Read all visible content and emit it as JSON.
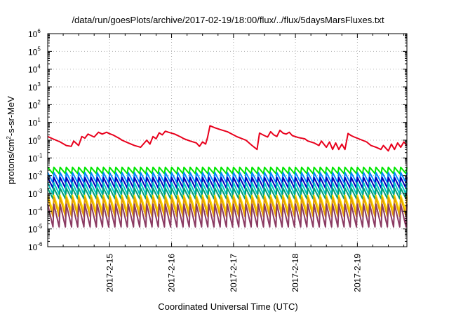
{
  "chart_data": {
    "type": "line",
    "title": "/data/run/goesPlots/archive/2017-02-19/18:00/flux/../flux/5daysMarsFluxes.txt",
    "xlabel": "Coordinated Universal Time (UTC)",
    "ylabel": "protons/cm²-s-sr-MeV",
    "ylabel_parts": {
      "pre": "protons/cm",
      "sup": "2",
      "post": "-s-sr-MeV"
    },
    "yscale": "log",
    "ylim_exponent": [
      -6,
      6
    ],
    "y_tick_labels": [
      {
        "base": "10",
        "exp": "-6"
      },
      {
        "base": "10",
        "exp": "-5"
      },
      {
        "base": "10",
        "exp": "-4"
      },
      {
        "base": "10",
        "exp": "-3"
      },
      {
        "base": "10",
        "exp": "-2"
      },
      {
        "base": "10",
        "exp": "-1"
      },
      {
        "base": "10",
        "exp": "0"
      },
      {
        "base": "10",
        "exp": "1"
      },
      {
        "base": "10",
        "exp": "2"
      },
      {
        "base": "10",
        "exp": "3"
      },
      {
        "base": "10",
        "exp": "4"
      },
      {
        "base": "10",
        "exp": "5"
      },
      {
        "base": "10",
        "exp": "6"
      }
    ],
    "x_tick_labels": [
      "2017-2-15",
      "2017-2-16",
      "2017-2-17",
      "2017-2-18",
      "2017-2-19"
    ],
    "x_tick_days": [
      15,
      16,
      17,
      18,
      19
    ],
    "xlim_days": [
      14.0,
      19.8
    ],
    "grid": true,
    "legend": "none",
    "series": [
      {
        "color": "#e8001c",
        "x": [
          14.0,
          14.08,
          14.2,
          14.3,
          14.38,
          14.42,
          14.5,
          14.55,
          14.6,
          14.65,
          14.75,
          14.82,
          14.88,
          14.95,
          15.0,
          15.05,
          15.15,
          15.2,
          15.3,
          15.4,
          15.5,
          15.6,
          15.65,
          15.7,
          15.75,
          15.8,
          15.85,
          15.9,
          15.95,
          16.05,
          16.15,
          16.2,
          16.3,
          16.4,
          16.45,
          16.5,
          16.55,
          16.58,
          16.62,
          16.7,
          16.78,
          16.9,
          17.05,
          17.2,
          17.3,
          17.38,
          17.42,
          17.5,
          17.55,
          17.6,
          17.65,
          17.7,
          17.75,
          17.8,
          17.85,
          17.9,
          17.95,
          18.05,
          18.15,
          18.2,
          18.3,
          18.38,
          18.42,
          18.5,
          18.55,
          18.6,
          18.65,
          18.7,
          18.75,
          18.8,
          18.85,
          18.9,
          18.95,
          19.05,
          19.15,
          19.22,
          19.3,
          19.38,
          19.42,
          19.5,
          19.55,
          19.6,
          19.65,
          19.7,
          19.75,
          19.8
        ],
        "y": [
          1.6,
          1.2,
          0.8,
          0.5,
          0.45,
          0.9,
          0.5,
          1.6,
          1.3,
          2.2,
          1.5,
          2.8,
          2.2,
          2.8,
          2.3,
          2.0,
          1.3,
          1.0,
          0.7,
          0.5,
          0.4,
          1.0,
          0.6,
          1.6,
          1.2,
          2.6,
          2.0,
          3.2,
          2.8,
          2.2,
          1.5,
          1.2,
          0.9,
          0.7,
          0.45,
          0.8,
          0.6,
          1.4,
          6.5,
          5.0,
          4.0,
          3.0,
          1.6,
          1.0,
          0.5,
          0.3,
          2.5,
          1.8,
          1.5,
          3.0,
          2.0,
          1.6,
          3.6,
          2.5,
          2.2,
          2.8,
          1.8,
          1.4,
          1.2,
          0.9,
          0.7,
          0.5,
          0.9,
          0.4,
          0.8,
          0.3,
          0.7,
          0.3,
          0.6,
          0.3,
          2.4,
          1.8,
          1.5,
          1.1,
          0.8,
          0.5,
          0.4,
          0.3,
          0.5,
          0.25,
          0.6,
          0.3,
          0.7,
          0.4,
          0.8,
          0.5
        ]
      },
      {
        "color": "#00e600",
        "base": 0.013,
        "top": 0.03
      },
      {
        "color": "#008aff",
        "base": 0.004,
        "top": 0.015
      },
      {
        "color": "#0000b8",
        "base": 0.002,
        "top": 0.008
      },
      {
        "color": "#00c8c8",
        "base": 0.0009,
        "top": 0.004
      },
      {
        "color": "#009e73",
        "base": 0.0005,
        "top": 0.002
      },
      {
        "color": "#ffe100",
        "base": 0.0001,
        "top": 0.0008
      },
      {
        "color": "#e6a000",
        "base": 5e-05,
        "top": 0.0006
      },
      {
        "color": "#8b3a62",
        "base": 1.3e-05,
        "top": 0.00025
      }
    ]
  }
}
